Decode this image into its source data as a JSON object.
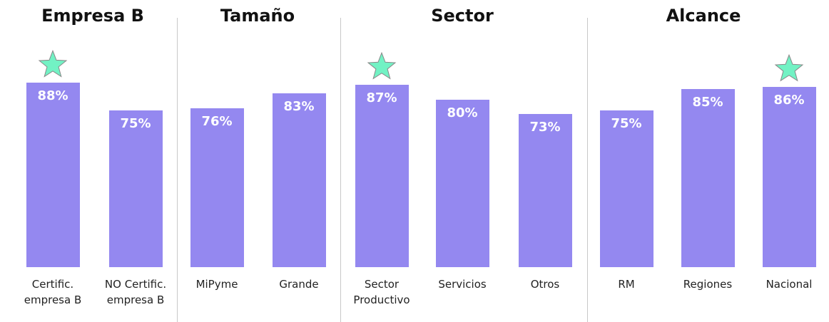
{
  "chart_data": [
    {
      "type": "bar",
      "title": "Empresa B",
      "categories": [
        "Certific.\nempresa B",
        "NO Certific.\nempresa B"
      ],
      "values": [
        88,
        75
      ],
      "value_labels": [
        "88%",
        "75%"
      ],
      "color": "#9488f0",
      "ylim": [
        0,
        100
      ],
      "highlight": 0
    },
    {
      "type": "bar",
      "title": "Tamaño",
      "categories": [
        "MiPyme",
        "Grande"
      ],
      "values": [
        76,
        83
      ],
      "value_labels": [
        "76%",
        "83%"
      ],
      "color": "#9488f0",
      "ylim": [
        0,
        100
      ]
    },
    {
      "type": "bar",
      "title": "Sector",
      "categories": [
        "Sector\nProductivo",
        "Servicios",
        "Otros"
      ],
      "values": [
        87,
        80,
        73
      ],
      "value_labels": [
        "87%",
        "80%",
        "73%"
      ],
      "color": "#9488f0",
      "ylim": [
        0,
        100
      ],
      "highlight": 0
    },
    {
      "type": "bar",
      "title": "Alcance",
      "categories": [
        "RM",
        "Regiones",
        "Nacional"
      ],
      "values": [
        75,
        85,
        86
      ],
      "value_labels": [
        "75%",
        "85%",
        "86%"
      ],
      "color": "#9488f0",
      "ylim": [
        0,
        100
      ],
      "highlight": 2
    }
  ]
}
